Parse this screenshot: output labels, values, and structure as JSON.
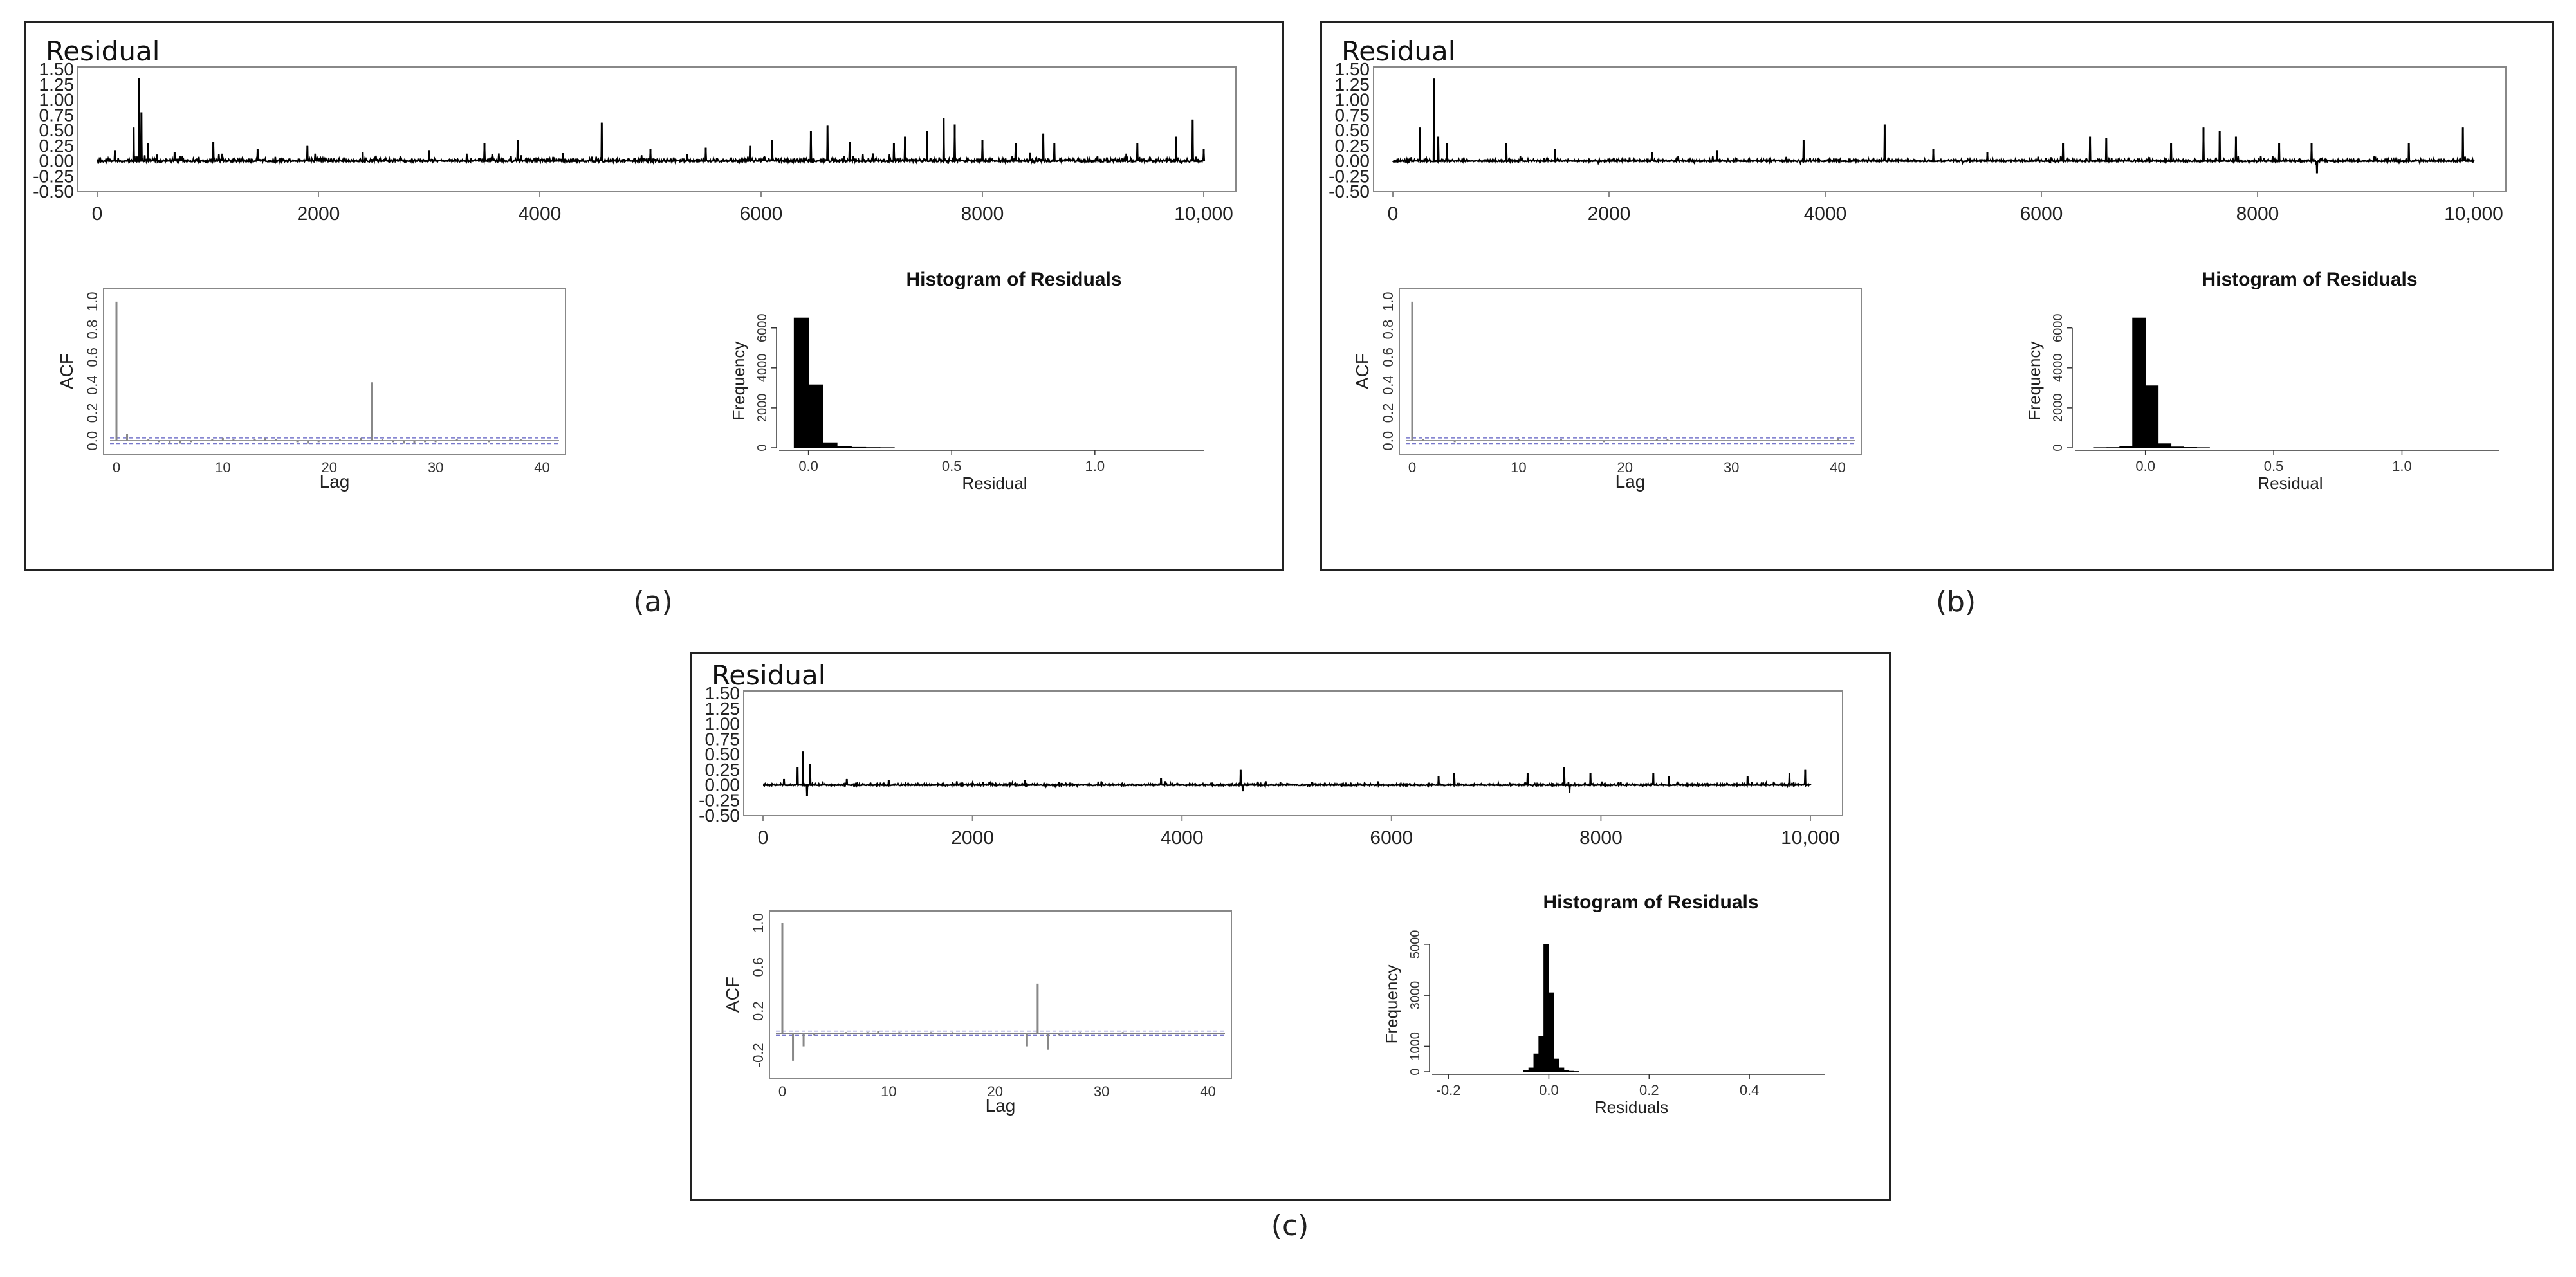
{
  "figure": {
    "captions": [
      "(a)",
      "(b)",
      "(c)"
    ]
  },
  "colors": {
    "line": "#000000",
    "frame": "#888888",
    "ci": "#7777cc",
    "acf": "#888888",
    "hist": "#000000"
  },
  "chart_data": [
    {
      "panel": "(a)",
      "residual_plot": {
        "type": "line",
        "title": "Residual",
        "xlim": [
          0,
          10000
        ],
        "ylim": [
          -0.5,
          1.5
        ],
        "xticks": [
          0,
          2000,
          4000,
          6000,
          8000,
          10000
        ],
        "xtick_labels": [
          "0",
          "2000",
          "4000",
          "6000",
          "8000",
          "10,000"
        ],
        "yticks": [
          -0.5,
          -0.25,
          0.0,
          0.25,
          0.5,
          0.75,
          1.0,
          1.25,
          1.5
        ],
        "ytick_labels": [
          "-0.50",
          "-0.25",
          "0.00",
          "0.25",
          "0.50",
          "0.75",
          "1.00",
          "1.25",
          "1.50"
        ],
        "baseline_noise": 0.06,
        "min_dip": -0.05,
        "spikes": [
          [
            160,
            0.18
          ],
          [
            330,
            0.55
          ],
          [
            380,
            1.36
          ],
          [
            400,
            0.8
          ],
          [
            460,
            0.3
          ],
          [
            700,
            0.15
          ],
          [
            1050,
            0.32
          ],
          [
            1450,
            0.2
          ],
          [
            1900,
            0.25
          ],
          [
            2400,
            0.15
          ],
          [
            3000,
            0.18
          ],
          [
            3500,
            0.3
          ],
          [
            3800,
            0.35
          ],
          [
            4560,
            0.63
          ],
          [
            5000,
            0.2
          ],
          [
            5500,
            0.22
          ],
          [
            5900,
            0.25
          ],
          [
            6100,
            0.35
          ],
          [
            6450,
            0.5
          ],
          [
            6600,
            0.58
          ],
          [
            6800,
            0.32
          ],
          [
            7200,
            0.3
          ],
          [
            7300,
            0.4
          ],
          [
            7500,
            0.5
          ],
          [
            7650,
            0.7
          ],
          [
            7750,
            0.6
          ],
          [
            8000,
            0.35
          ],
          [
            8300,
            0.3
          ],
          [
            8550,
            0.45
          ],
          [
            8650,
            0.3
          ],
          [
            9400,
            0.3
          ],
          [
            9750,
            0.4
          ],
          [
            9900,
            0.68
          ],
          [
            10000,
            0.2
          ]
        ]
      },
      "acf_plot": {
        "type": "bar",
        "xlabel": "Lag",
        "ylabel": "ACF",
        "xlim": [
          0,
          41
        ],
        "ylim": [
          -0.05,
          1.05
        ],
        "xticks": [
          0,
          10,
          20,
          30,
          40
        ],
        "yticks": [
          0.0,
          0.2,
          0.4,
          0.6,
          0.8,
          1.0
        ],
        "ytick_labels": [
          "0.0",
          "0.2",
          "0.4",
          "0.6",
          "0.8",
          "1.0"
        ],
        "ci": 0.02,
        "lags": [
          0,
          1,
          2,
          3,
          4,
          5,
          6,
          7,
          8,
          9,
          10,
          11,
          12,
          13,
          14,
          15,
          16,
          17,
          18,
          19,
          20,
          21,
          22,
          23,
          24,
          25,
          26,
          27,
          28,
          29,
          30,
          31,
          32,
          33,
          34,
          35,
          36,
          37,
          38,
          39,
          40
        ],
        "values": [
          1.0,
          0.05,
          0.0,
          0.01,
          -0.01,
          -0.02,
          -0.02,
          -0.01,
          0.0,
          0.01,
          0.02,
          0.01,
          0.0,
          0.01,
          0.02,
          0.01,
          0.0,
          -0.01,
          -0.02,
          -0.01,
          0.0,
          0.01,
          0.0,
          0.02,
          0.42,
          0.01,
          -0.01,
          -0.02,
          -0.02,
          -0.01,
          -0.01,
          0.0,
          0.01,
          0.0,
          0.0,
          -0.01,
          0.0,
          0.01,
          0.01,
          0.0,
          0.0
        ]
      },
      "histogram": {
        "type": "bar",
        "title": "Histogram of Residuals",
        "xlabel": "Residual",
        "ylabel": "Frequency",
        "xlim": [
          -0.08,
          1.38
        ],
        "ylim": [
          0,
          6700
        ],
        "xticks": [
          0.0,
          0.5,
          1.0
        ],
        "xtick_labels": [
          "0.0",
          "0.5",
          "1.0"
        ],
        "yticks": [
          0,
          2000,
          4000,
          6000
        ],
        "ytick_labels": [
          "0",
          "2000",
          "4000",
          "6000"
        ],
        "bin_edges": [
          -0.05,
          0.0,
          0.05,
          0.1,
          0.15,
          0.2,
          0.25,
          0.3
        ],
        "counts": [
          6500,
          3150,
          250,
          60,
          20,
          10,
          5
        ]
      }
    },
    {
      "panel": "(b)",
      "residual_plot": {
        "type": "line",
        "title": "Residual",
        "xlim": [
          0,
          10000
        ],
        "ylim": [
          -0.5,
          1.5
        ],
        "xticks": [
          0,
          2000,
          4000,
          6000,
          8000,
          10000
        ],
        "xtick_labels": [
          "0",
          "2000",
          "4000",
          "6000",
          "8000",
          "10,000"
        ],
        "yticks": [
          -0.5,
          -0.25,
          0.0,
          0.25,
          0.5,
          0.75,
          1.0,
          1.25,
          1.5
        ],
        "ytick_labels": [
          "-0.50",
          "-0.25",
          "0.00",
          "0.25",
          "0.50",
          "0.75",
          "1.00",
          "1.25",
          "1.50"
        ],
        "baseline_noise": 0.04,
        "min_dip": -0.2,
        "spikes": [
          [
            250,
            0.55
          ],
          [
            380,
            1.35
          ],
          [
            420,
            0.4
          ],
          [
            500,
            0.3
          ],
          [
            1050,
            0.3
          ],
          [
            1500,
            0.2
          ],
          [
            2400,
            0.15
          ],
          [
            3000,
            0.18
          ],
          [
            3800,
            0.35
          ],
          [
            4550,
            0.6
          ],
          [
            5000,
            0.2
          ],
          [
            5500,
            0.15
          ],
          [
            6200,
            0.3
          ],
          [
            6450,
            0.4
          ],
          [
            6600,
            0.38
          ],
          [
            7200,
            0.3
          ],
          [
            7500,
            0.55
          ],
          [
            7650,
            0.5
          ],
          [
            7800,
            0.4
          ],
          [
            8200,
            0.3
          ],
          [
            8500,
            0.3
          ],
          [
            8550,
            -0.2
          ],
          [
            9400,
            0.3
          ],
          [
            9900,
            0.55
          ]
        ]
      },
      "acf_plot": {
        "type": "bar",
        "xlabel": "Lag",
        "ylabel": "ACF",
        "xlim": [
          0,
          41
        ],
        "ylim": [
          -0.05,
          1.05
        ],
        "xticks": [
          0,
          10,
          20,
          30,
          40
        ],
        "yticks": [
          0.0,
          0.2,
          0.4,
          0.6,
          0.8,
          1.0
        ],
        "ytick_labels": [
          "0.0",
          "0.2",
          "0.4",
          "0.6",
          "0.8",
          "1.0"
        ],
        "ci": 0.02,
        "lags": [
          0,
          1,
          2,
          3,
          4,
          5,
          6,
          7,
          8,
          9,
          10,
          11,
          12,
          13,
          14,
          15,
          16,
          17,
          18,
          19,
          20,
          21,
          22,
          23,
          24,
          25,
          26,
          27,
          28,
          29,
          30,
          31,
          32,
          33,
          34,
          35,
          36,
          37,
          38,
          39,
          40
        ],
        "values": [
          1.0,
          0.01,
          0.0,
          0.0,
          -0.01,
          0.0,
          0.0,
          0.0,
          0.0,
          0.0,
          0.01,
          0.0,
          0.0,
          0.0,
          0.01,
          0.0,
          0.0,
          0.0,
          -0.01,
          0.0,
          0.0,
          0.0,
          0.0,
          0.01,
          0.01,
          0.0,
          0.0,
          0.0,
          0.0,
          0.0,
          0.0,
          0.0,
          0.0,
          0.0,
          0.0,
          0.0,
          0.0,
          0.0,
          0.0,
          0.0,
          0.02
        ]
      },
      "histogram": {
        "type": "bar",
        "title": "Histogram of Residuals",
        "xlabel": "Residual",
        "ylabel": "Frequency",
        "xlim": [
          -0.25,
          1.38
        ],
        "ylim": [
          0,
          6700
        ],
        "xticks": [
          0.0,
          0.5,
          1.0
        ],
        "xtick_labels": [
          "0.0",
          "0.5",
          "1.0"
        ],
        "yticks": [
          0,
          2000,
          4000,
          6000
        ],
        "ytick_labels": [
          "0",
          "2000",
          "4000",
          "6000"
        ],
        "bin_edges": [
          -0.2,
          -0.15,
          -0.1,
          -0.05,
          0.0,
          0.05,
          0.1,
          0.15,
          0.2,
          0.25
        ],
        "counts": [
          5,
          10,
          50,
          6500,
          3100,
          200,
          40,
          15,
          5
        ]
      }
    },
    {
      "panel": "(c)",
      "residual_plot": {
        "type": "line",
        "title": "Residual",
        "xlim": [
          0,
          10000
        ],
        "ylim": [
          -0.5,
          1.5
        ],
        "xticks": [
          0,
          2000,
          4000,
          6000,
          8000,
          10000
        ],
        "xtick_labels": [
          "0",
          "2000",
          "4000",
          "6000",
          "8000",
          "10,000"
        ],
        "yticks": [
          -0.5,
          -0.25,
          0.0,
          0.25,
          0.5,
          0.75,
          1.0,
          1.25,
          1.5
        ],
        "ytick_labels": [
          "-0.50",
          "-0.25",
          "0.00",
          "0.25",
          "0.50",
          "0.75",
          "1.00",
          "1.25",
          "1.50"
        ],
        "baseline_noise": 0.03,
        "min_dip": -0.12,
        "spikes": [
          [
            200,
            0.1
          ],
          [
            330,
            0.3
          ],
          [
            380,
            0.55
          ],
          [
            420,
            -0.18
          ],
          [
            450,
            0.35
          ],
          [
            800,
            0.1
          ],
          [
            1200,
            0.08
          ],
          [
            2500,
            0.08
          ],
          [
            3800,
            0.12
          ],
          [
            4560,
            0.25
          ],
          [
            4580,
            -0.1
          ],
          [
            6450,
            0.15
          ],
          [
            6600,
            0.2
          ],
          [
            7300,
            0.2
          ],
          [
            7650,
            0.3
          ],
          [
            7700,
            -0.12
          ],
          [
            7900,
            0.2
          ],
          [
            8500,
            0.2
          ],
          [
            8650,
            0.15
          ],
          [
            9400,
            0.15
          ],
          [
            9800,
            0.2
          ],
          [
            9950,
            0.25
          ]
        ]
      },
      "acf_plot": {
        "type": "bar",
        "xlabel": "Lag",
        "ylabel": "ACF",
        "xlim": [
          0,
          41
        ],
        "ylim": [
          -0.35,
          1.05
        ],
        "xticks": [
          0,
          10,
          20,
          30,
          40
        ],
        "yticks": [
          -0.2,
          0.2,
          0.6,
          1.0
        ],
        "ytick_labels": [
          "-0.2",
          "0.2",
          "0.6",
          "1.0"
        ],
        "ci": 0.02,
        "lags": [
          0,
          1,
          2,
          3,
          4,
          5,
          6,
          7,
          8,
          9,
          10,
          11,
          12,
          13,
          14,
          15,
          16,
          17,
          18,
          19,
          20,
          21,
          22,
          23,
          24,
          25,
          26,
          27,
          28,
          29,
          30,
          31,
          32,
          33,
          34,
          35,
          36,
          37,
          38,
          39,
          40
        ],
        "values": [
          1.0,
          -0.25,
          -0.12,
          -0.02,
          -0.01,
          0.0,
          0.01,
          0.0,
          0.01,
          0.02,
          0.0,
          0.01,
          0.0,
          0.0,
          0.01,
          0.0,
          0.01,
          0.0,
          0.0,
          0.0,
          -0.01,
          0.0,
          0.0,
          -0.12,
          0.45,
          -0.15,
          -0.02,
          0.0,
          0.01,
          0.0,
          0.0,
          0.0,
          0.01,
          0.0,
          0.0,
          0.0,
          0.0,
          0.0,
          0.0,
          0.0,
          0.0
        ]
      },
      "histogram": {
        "type": "bar",
        "title": "Histogram of Residuals",
        "xlabel": "Residuals",
        "ylabel": "Frequency",
        "xlim": [
          -0.22,
          0.55
        ],
        "ylim": [
          0,
          5300
        ],
        "xticks": [
          -0.2,
          0.0,
          0.2,
          0.4
        ],
        "xtick_labels": [
          "-0.2",
          "0.0",
          "0.2",
          "0.4"
        ],
        "yticks": [
          0,
          1000,
          3000,
          5000
        ],
        "ytick_labels": [
          "0",
          "1000",
          "3000",
          "5000"
        ],
        "bin_edges": [
          -0.05,
          -0.04,
          -0.03,
          -0.02,
          -0.01,
          0.0,
          0.01,
          0.02,
          0.03,
          0.04,
          0.05,
          0.06
        ],
        "counts": [
          40,
          150,
          700,
          1400,
          5000,
          3100,
          500,
          150,
          60,
          20,
          10
        ]
      }
    }
  ]
}
